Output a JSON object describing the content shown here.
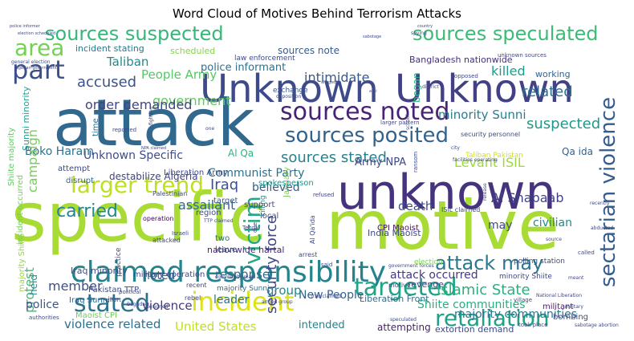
{
  "chart_data": {
    "type": "wordcloud",
    "title": "Word Cloud of Motives Behind Terrorism Attacks",
    "words": [
      {
        "text": "specific",
        "color": "#a8db34"
      },
      {
        "text": "motive",
        "color": "#a8db34"
      },
      {
        "text": "attack",
        "color": "#31688e"
      },
      {
        "text": "unknown",
        "color": "#46337e"
      },
      {
        "text": "Unknown",
        "color": "#3e4a89"
      },
      {
        "text": "Unknown",
        "color": "#424086"
      },
      {
        "text": "claimed responsibility",
        "color": "#25838e"
      },
      {
        "text": "sources suspected",
        "color": "#35b779"
      },
      {
        "text": "sources speculated",
        "color": "#3bbb75"
      },
      {
        "text": "sources noted",
        "color": "#482374"
      },
      {
        "text": "targeted",
        "color": "#20a386"
      },
      {
        "text": "incident",
        "color": "#dde318"
      },
      {
        "text": "stated",
        "color": "#2c728e"
      },
      {
        "text": "sectarian violence",
        "color": "#365c8d"
      },
      {
        "text": "retaliation",
        "color": "#1fa287"
      },
      {
        "text": "sources posited",
        "color": "#33638d"
      },
      {
        "text": "larger trend",
        "color": "#bddf26"
      },
      {
        "text": "attack may",
        "color": "#2a788e"
      },
      {
        "text": "part",
        "color": "#3d4e8a"
      },
      {
        "text": "area",
        "color": "#75d054"
      },
      {
        "text": "carried",
        "color": "#25848e"
      },
      {
        "text": "victim",
        "color": "#22a884"
      },
      {
        "text": "Islamic State",
        "color": "#2ab07f"
      },
      {
        "text": "sources stated",
        "color": "#26828e"
      },
      {
        "text": "government",
        "color": "#62cb5f"
      },
      {
        "text": "accused",
        "color": "#3a538b"
      },
      {
        "text": "security force",
        "color": "#3f4889"
      },
      {
        "text": "Levant ISIL",
        "color": "#9dd93b"
      },
      {
        "text": "Unknown Specific",
        "color": "#3e4c8a"
      },
      {
        "text": "order demanded",
        "color": "#414487"
      },
      {
        "text": "People Army",
        "color": "#56c667"
      },
      {
        "text": "Taliban",
        "color": "#23898e"
      },
      {
        "text": "Boko Haram",
        "color": "#2d708e"
      },
      {
        "text": "campaign",
        "color": "#73d056"
      },
      {
        "text": "Iraq",
        "color": "#3b528b"
      },
      {
        "text": "assailant",
        "color": "#31678e"
      },
      {
        "text": "killed",
        "color": "#1e9b8a"
      },
      {
        "text": "related",
        "color": "#2d718e"
      },
      {
        "text": "suspected",
        "color": "#1f988b"
      },
      {
        "text": "minority Sunni",
        "color": "#277f8e"
      },
      {
        "text": "Communist Party",
        "color": "#2e6f8e"
      },
      {
        "text": "intimidate",
        "color": "#38598c"
      },
      {
        "text": "Al Shabaab",
        "color": "#424186"
      },
      {
        "text": "Army NPA",
        "color": "#3f4788"
      },
      {
        "text": "believed",
        "color": "#365d8d"
      },
      {
        "text": "protest",
        "color": "#40bd72"
      },
      {
        "text": "member",
        "color": "#3b518b"
      },
      {
        "text": "police",
        "color": "#3a548c"
      },
      {
        "text": "violence",
        "color": "#453781"
      },
      {
        "text": "violence related",
        "color": "#2e6e8e"
      },
      {
        "text": "United States",
        "color": "#c0df25"
      },
      {
        "text": "New People",
        "color": "#33628d"
      },
      {
        "text": "Shiite communities",
        "color": "#29af7f"
      },
      {
        "text": "majority communities",
        "color": "#2a768e"
      },
      {
        "text": "response",
        "color": "#2f6b8e"
      },
      {
        "text": "group",
        "color": "#24878e"
      },
      {
        "text": "noted",
        "color": "#355f8d"
      },
      {
        "text": "death",
        "color": "#3c4f8a"
      },
      {
        "text": "civilian",
        "color": "#24868e"
      },
      {
        "text": "may",
        "color": "#3e4989"
      },
      {
        "text": "attack occurred",
        "color": "#443983"
      },
      {
        "text": "leader",
        "color": "#2b748e"
      },
      {
        "text": "intended",
        "color": "#26828e"
      },
      {
        "text": "attempting",
        "color": "#481f70"
      },
      {
        "text": "extortion demand",
        "color": "#3e4a89"
      },
      {
        "text": "police informant",
        "color": "#2c718e"
      },
      {
        "text": "sources note",
        "color": "#355e8d"
      },
      {
        "text": "incident stating",
        "color": "#2b758e"
      },
      {
        "text": "scheduled",
        "color": "#84d44b"
      },
      {
        "text": "Bangladesh nationwide",
        "color": "#46307e"
      },
      {
        "text": "working",
        "color": "#33638d"
      },
      {
        "text": "Sunni minority",
        "color": "#1fa088"
      },
      {
        "text": "Al Qa",
        "color": "#2db27d"
      },
      {
        "text": "Qa ida",
        "color": "#34608d"
      },
      {
        "text": "began",
        "color": "#2fb47c"
      },
      {
        "text": "held",
        "color": "#21908d"
      },
      {
        "text": "Iraq minority",
        "color": "#3d4d8a"
      },
      {
        "text": "nationwide hartal",
        "color": "#482878"
      },
      {
        "text": "Liberation Front",
        "color": "#2e6e8e"
      },
      {
        "text": "Pakistan TTP",
        "color": "#3e4c8a"
      },
      {
        "text": "Iraq Sunni",
        "color": "#2f6c8e"
      },
      {
        "text": "Maoist CPI",
        "color": "#6ece58"
      },
      {
        "text": "CPI Maoist",
        "color": "#471164"
      },
      {
        "text": "India Maoist",
        "color": "#3f4889"
      },
      {
        "text": "revenge",
        "color": "#424186"
      },
      {
        "text": "bombing",
        "color": "#3d4d8a"
      },
      {
        "text": "militant",
        "color": "#481a6c"
      },
      {
        "text": "majority Sunni",
        "color": "#2e6f8e"
      },
      {
        "text": "Shiite majority",
        "color": "#5ec962"
      },
      {
        "text": "incident occurred",
        "color": "#73d056"
      },
      {
        "text": "majority Shiite",
        "color": "#93d741"
      },
      {
        "text": "minority Shiite",
        "color": "#3f4889"
      },
      {
        "text": "ISIL claimed",
        "color": "#3e4a89"
      },
      {
        "text": "killing",
        "color": "#24868e"
      },
      {
        "text": "January",
        "color": "#7ad151"
      },
      {
        "text": "Taliban Pakistan",
        "color": "#d2e21b"
      },
      {
        "text": "security personnel",
        "color": "#3e4a89"
      },
      {
        "text": "spokesperson",
        "color": "#1f958b"
      },
      {
        "text": "support",
        "color": "#3d4d8a"
      },
      {
        "text": "local",
        "color": "#3b528b"
      },
      {
        "text": "arrest",
        "color": "#3e4a89"
      },
      {
        "text": "destabilize Algeria",
        "color": "#414487"
      },
      {
        "text": "Liberation Army",
        "color": "#3e4a89"
      },
      {
        "text": "target",
        "color": "#365d8d"
      },
      {
        "text": "region",
        "color": "#3e4989"
      },
      {
        "text": "operation",
        "color": "#440154"
      },
      {
        "text": "military operation",
        "color": "#3e4a89"
      },
      {
        "text": "disrupt",
        "color": "#31688e"
      },
      {
        "text": "attempt",
        "color": "#3e4989"
      },
      {
        "text": "time",
        "color": "#2c728e"
      },
      {
        "text": "two",
        "color": "#2c728e"
      },
      {
        "text": "leave",
        "color": "#3e4a89"
      },
      {
        "text": "practice",
        "color": "#3f4889"
      },
      {
        "text": "attacked",
        "color": "#414487"
      },
      {
        "text": "Palestinian",
        "color": "#3e4a89"
      },
      {
        "text": "exchange",
        "color": "#3a538b"
      },
      {
        "text": "refused",
        "color": "#414487"
      },
      {
        "text": "law enforcement",
        "color": "#3e4a89"
      },
      {
        "text": "community may",
        "color": "#424086"
      },
      {
        "text": "election",
        "color": "#7ad151"
      },
      {
        "text": "polling station",
        "color": "#3e4a89"
      },
      {
        "text": "motive",
        "color": "#3e4a89"
      },
      {
        "text": "recent",
        "color": "#3e4a89"
      },
      {
        "text": "rebel",
        "color": "#3e4a89"
      },
      {
        "text": "effort",
        "color": "#3e4a89"
      },
      {
        "text": "political",
        "color": "#3e4a89"
      },
      {
        "text": "armed group",
        "color": "#3e4a89"
      },
      {
        "text": "speculated",
        "color": "#3e4a89"
      },
      {
        "text": "took place",
        "color": "#3e4a89"
      },
      {
        "text": "sabotage abortion",
        "color": "#3e4a89"
      },
      {
        "text": "authorities",
        "color": "#3e4a89"
      },
      {
        "text": "Baghdad",
        "color": "#3e4a89"
      },
      {
        "text": "general election",
        "color": "#3e4a89"
      },
      {
        "text": "Algerian government",
        "color": "#3e4a89"
      },
      {
        "text": "police informer",
        "color": "#3e4a89"
      },
      {
        "text": "election scheduled",
        "color": "#3e4a89"
      },
      {
        "text": "sabotage",
        "color": "#3e4a89"
      },
      {
        "text": "country",
        "color": "#3e4a89"
      },
      {
        "text": "unknown sources",
        "color": "#3e4a89"
      },
      {
        "text": "opposed",
        "color": "#3e4a89"
      },
      {
        "text": "district",
        "color": "#3e4a89"
      },
      {
        "text": "opposition",
        "color": "#3e4a89"
      },
      {
        "text": "larger pattern",
        "color": "#3e4a89"
      },
      {
        "text": "ransom",
        "color": "#3e4a89"
      },
      {
        "text": "release",
        "color": "#3e4a89"
      },
      {
        "text": "recently",
        "color": "#3e4a89"
      },
      {
        "text": "called",
        "color": "#3e4a89"
      },
      {
        "text": "said",
        "color": "#3e4a89"
      },
      {
        "text": "anti",
        "color": "#3e4a89"
      },
      {
        "text": "government forces",
        "color": "#3e4a89"
      },
      {
        "text": "TTP claimed",
        "color": "#3e4a89"
      },
      {
        "text": "Israeli",
        "color": "#3e4a89"
      },
      {
        "text": "Tehrik",
        "color": "#3e4a89"
      },
      {
        "text": "due",
        "color": "#3e4a89"
      },
      {
        "text": "one",
        "color": "#3e4a89"
      },
      {
        "text": "designed",
        "color": "#3e4a89"
      },
      {
        "text": "Iraq claimed",
        "color": "#3e4a89"
      },
      {
        "text": "allegedly",
        "color": "#3e4a89"
      },
      {
        "text": "facilities operating",
        "color": "#3e4a89"
      },
      {
        "text": "reported",
        "color": "#3e4a89"
      },
      {
        "text": "Al Qa'ida",
        "color": "#3e4a89"
      },
      {
        "text": "National Liberation",
        "color": "#3e4a89"
      },
      {
        "text": "source",
        "color": "#3e4a89"
      },
      {
        "text": "city",
        "color": "#3e4a89"
      },
      {
        "text": "abducted",
        "color": "#3e4a89"
      },
      {
        "text": "military",
        "color": "#3e4a89"
      },
      {
        "text": "meant",
        "color": "#3e4a89"
      },
      {
        "text": "school",
        "color": "#3e4a89"
      },
      {
        "text": "fighting",
        "color": "#3e4a89"
      },
      {
        "text": "NPA claimed",
        "color": "#3e4a89"
      },
      {
        "text": "village",
        "color": "#3e4a89"
      },
      {
        "text": "spying",
        "color": "#3e4a89"
      },
      {
        "text": "abortion facilities",
        "color": "#3e4a89"
      }
    ]
  }
}
